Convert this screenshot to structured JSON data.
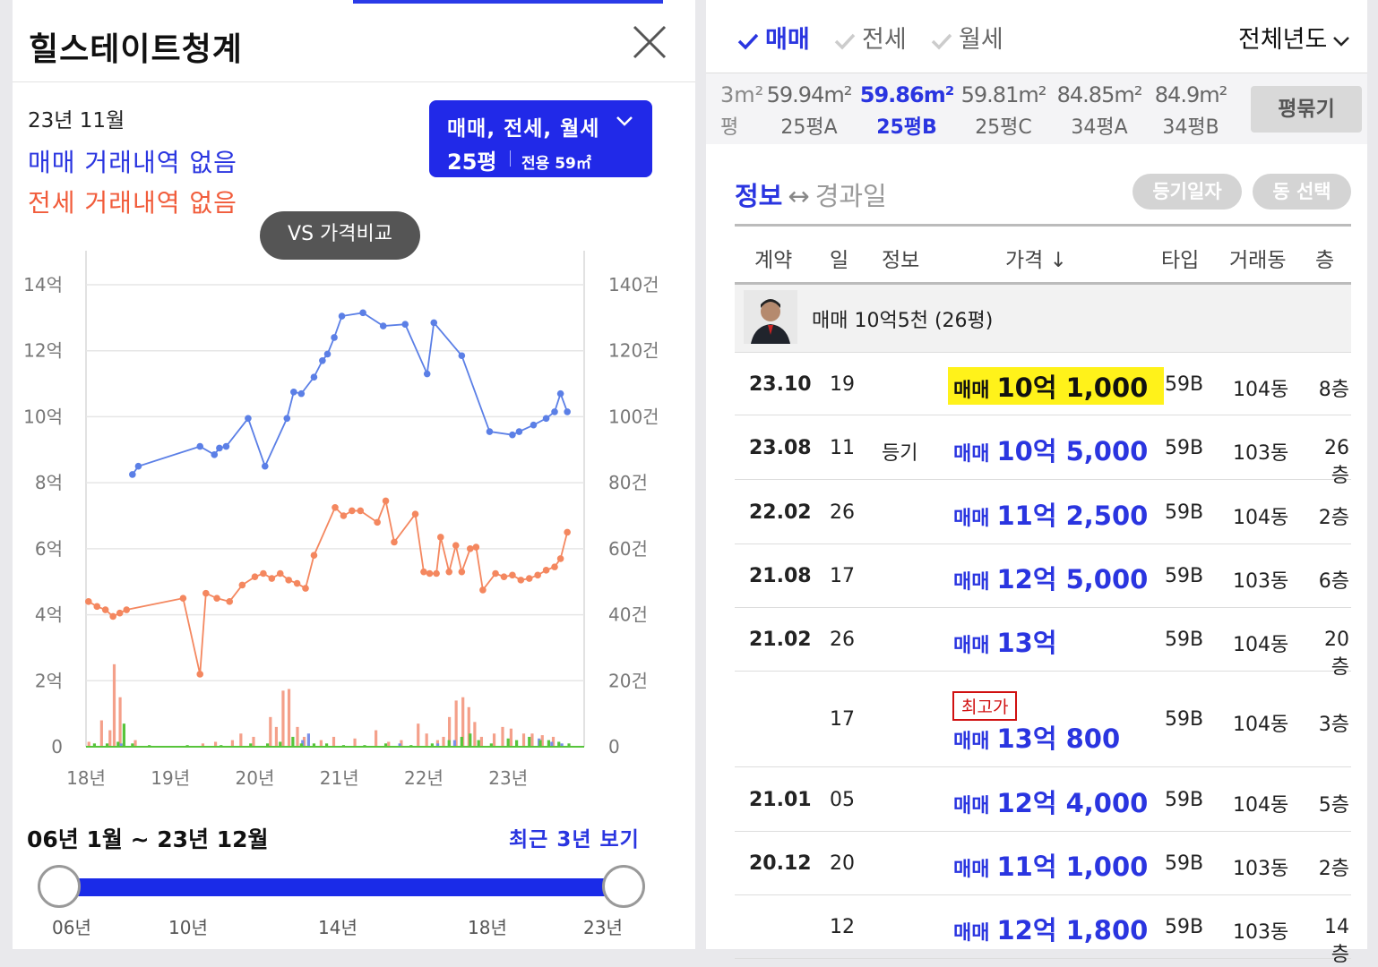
{
  "left_panel": {
    "complex_name": "힐스테이트청계",
    "month": "23년 11월",
    "sale_status": "매매 거래내역 없음",
    "jeonse_status": "전세 거래내역 없음",
    "filter": {
      "types": "매매, 전세, 월세",
      "size": "25평",
      "area": "전용 59㎡"
    },
    "vs_button": "VS 가격비교",
    "range_label": "06년 1월 ~ 23년 12월",
    "recent_button": "최근 3년 보기",
    "slider_ticks": [
      "06년",
      "10년",
      "14년",
      "18년",
      "23년"
    ]
  },
  "chart_data": {
    "type": "line",
    "y_left_ticks": [
      "14억",
      "12억",
      "10억",
      "8억",
      "6억",
      "4억",
      "2억",
      "0"
    ],
    "y_right_ticks": [
      "140건",
      "120건",
      "100건",
      "80건",
      "60건",
      "40건",
      "20건",
      "0"
    ],
    "x_ticks": [
      "18년",
      "19년",
      "20년",
      "21년",
      "22년",
      "23년"
    ],
    "ylim": [
      0,
      14
    ],
    "y2lim": [
      0,
      140
    ],
    "xlim": [
      2018.0,
      2023.9
    ],
    "grid": true,
    "series": [
      {
        "color": "#5b7fe6",
        "points": [
          [
            2018.55,
            8.25
          ],
          [
            2018.62,
            8.5
          ],
          [
            2019.35,
            9.1
          ],
          [
            2019.52,
            8.85
          ],
          [
            2019.58,
            9.05
          ],
          [
            2019.66,
            9.1
          ],
          [
            2019.92,
            9.95
          ],
          [
            2020.12,
            8.5
          ],
          [
            2020.38,
            9.95
          ],
          [
            2020.46,
            10.75
          ],
          [
            2020.55,
            10.7
          ],
          [
            2020.7,
            11.2
          ],
          [
            2020.8,
            11.7
          ],
          [
            2020.86,
            11.9
          ],
          [
            2020.94,
            12.4
          ],
          [
            2021.03,
            13.05
          ],
          [
            2021.28,
            13.15
          ],
          [
            2021.52,
            12.75
          ],
          [
            2021.78,
            12.8
          ],
          [
            2022.04,
            11.3
          ],
          [
            2022.12,
            12.85
          ],
          [
            2022.45,
            11.85
          ],
          [
            2022.78,
            9.55
          ],
          [
            2023.05,
            9.45
          ],
          [
            2023.13,
            9.55
          ],
          [
            2023.3,
            9.75
          ],
          [
            2023.45,
            9.95
          ],
          [
            2023.55,
            10.15
          ],
          [
            2023.62,
            10.7
          ],
          [
            2023.7,
            10.15
          ]
        ]
      },
      {
        "color": "#f4875f",
        "points": [
          [
            2018.03,
            4.4
          ],
          [
            2018.13,
            4.25
          ],
          [
            2018.23,
            4.15
          ],
          [
            2018.32,
            3.95
          ],
          [
            2018.4,
            4.05
          ],
          [
            2018.48,
            4.15
          ],
          [
            2019.15,
            4.5
          ],
          [
            2019.35,
            2.2
          ],
          [
            2019.42,
            4.65
          ],
          [
            2019.55,
            4.5
          ],
          [
            2019.7,
            4.4
          ],
          [
            2019.85,
            4.9
          ],
          [
            2020.0,
            5.15
          ],
          [
            2020.1,
            5.25
          ],
          [
            2020.2,
            5.1
          ],
          [
            2020.3,
            5.25
          ],
          [
            2020.4,
            5.05
          ],
          [
            2020.5,
            4.95
          ],
          [
            2020.6,
            4.8
          ],
          [
            2020.7,
            5.8
          ],
          [
            2020.95,
            7.25
          ],
          [
            2021.05,
            7.0
          ],
          [
            2021.15,
            7.15
          ],
          [
            2021.25,
            7.15
          ],
          [
            2021.45,
            6.8
          ],
          [
            2021.55,
            7.45
          ],
          [
            2021.65,
            6.2
          ],
          [
            2021.9,
            7.05
          ],
          [
            2022.0,
            5.3
          ],
          [
            2022.07,
            5.25
          ],
          [
            2022.15,
            5.25
          ],
          [
            2022.2,
            6.35
          ],
          [
            2022.3,
            5.3
          ],
          [
            2022.38,
            6.1
          ],
          [
            2022.45,
            5.3
          ],
          [
            2022.55,
            6.0
          ],
          [
            2022.62,
            6.05
          ],
          [
            2022.7,
            4.75
          ],
          [
            2022.85,
            5.25
          ],
          [
            2022.95,
            5.15
          ],
          [
            2023.05,
            5.2
          ],
          [
            2023.15,
            5.05
          ],
          [
            2023.25,
            5.1
          ],
          [
            2023.35,
            5.2
          ],
          [
            2023.45,
            5.35
          ],
          [
            2023.55,
            5.45
          ],
          [
            2023.62,
            5.7
          ],
          [
            2023.7,
            6.5
          ]
        ]
      }
    ],
    "volume_bars": {
      "red": [
        [
          2018.05,
          1.5
        ],
        [
          2018.2,
          8
        ],
        [
          2018.3,
          5
        ],
        [
          2018.35,
          25
        ],
        [
          2018.42,
          15
        ],
        [
          2018.6,
          2
        ],
        [
          2019.4,
          1
        ],
        [
          2019.55,
          1.5
        ],
        [
          2019.75,
          2
        ],
        [
          2019.85,
          4
        ],
        [
          2020.0,
          3
        ],
        [
          2020.2,
          9
        ],
        [
          2020.27,
          6
        ],
        [
          2020.35,
          17
        ],
        [
          2020.42,
          17.5
        ],
        [
          2020.52,
          6
        ],
        [
          2020.6,
          3
        ],
        [
          2020.8,
          2
        ],
        [
          2020.95,
          3
        ],
        [
          2021.2,
          2.5
        ],
        [
          2021.45,
          5
        ],
        [
          2021.6,
          1.5
        ],
        [
          2021.75,
          2
        ],
        [
          2021.95,
          7
        ],
        [
          2022.05,
          4
        ],
        [
          2022.18,
          2
        ],
        [
          2022.25,
          3
        ],
        [
          2022.32,
          9
        ],
        [
          2022.4,
          14
        ],
        [
          2022.48,
          15
        ],
        [
          2022.55,
          12
        ],
        [
          2022.62,
          7.5
        ],
        [
          2022.7,
          3
        ],
        [
          2022.85,
          4
        ],
        [
          2022.95,
          6
        ],
        [
          2023.05,
          5.5
        ],
        [
          2023.2,
          4
        ],
        [
          2023.3,
          4
        ],
        [
          2023.42,
          3.5
        ],
        [
          2023.55,
          3
        ]
      ],
      "blue": [
        [
          2018.4,
          1
        ],
        [
          2020.55,
          2
        ],
        [
          2020.62,
          4
        ],
        [
          2021.7,
          1
        ],
        [
          2022.15,
          1
        ],
        [
          2022.35,
          2
        ],
        [
          2023.35,
          2.5
        ],
        [
          2023.5,
          1.5
        ],
        [
          2023.62,
          1
        ]
      ],
      "green": [
        [
          2018.1,
          1
        ],
        [
          2018.25,
          1
        ],
        [
          2018.38,
          1.5
        ],
        [
          2018.45,
          7
        ],
        [
          2018.55,
          1
        ],
        [
          2018.75,
          0.5
        ],
        [
          2019.2,
          0.5
        ],
        [
          2019.6,
          0.5
        ],
        [
          2019.95,
          1
        ],
        [
          2020.15,
          1
        ],
        [
          2020.3,
          1.5
        ],
        [
          2020.45,
          3
        ],
        [
          2020.55,
          1
        ],
        [
          2020.7,
          1
        ],
        [
          2020.85,
          1
        ],
        [
          2021.05,
          0.5
        ],
        [
          2021.3,
          0.5
        ],
        [
          2021.55,
          1
        ],
        [
          2021.85,
          0.5
        ],
        [
          2022.1,
          1
        ],
        [
          2022.3,
          2
        ],
        [
          2022.45,
          3
        ],
        [
          2022.55,
          4
        ],
        [
          2022.65,
          2
        ],
        [
          2022.8,
          1
        ],
        [
          2023.0,
          2.5
        ],
        [
          2023.1,
          2
        ],
        [
          2023.25,
          3
        ],
        [
          2023.38,
          2
        ],
        [
          2023.48,
          2
        ],
        [
          2023.6,
          1.5
        ],
        [
          2023.72,
          1
        ]
      ]
    }
  },
  "right_panel": {
    "tabs": [
      "매매",
      "전세",
      "월세"
    ],
    "year_select": "전체년도",
    "area_partial": {
      "m2": "3m²",
      "py": "평"
    },
    "areas": [
      {
        "m2": "59.94m²",
        "py": "25평A"
      },
      {
        "m2": "59.86m²",
        "py": "25평B"
      },
      {
        "m2": "59.81m²",
        "py": "25평C"
      },
      {
        "m2": "84.85m²",
        "py": "34평A"
      },
      {
        "m2": "84.9m²",
        "py": "34평B"
      }
    ],
    "pyeong_button": "평묶기",
    "info_toggle": {
      "a": "정보",
      "arrow": "↔",
      "b": "경과일"
    },
    "pill_date": "등기일자",
    "pill_dong": "동 선택",
    "headers": [
      "계약",
      "일",
      "정보",
      "가격 ↓",
      "타입",
      "거래동",
      "층"
    ],
    "agent_text": "매매 10억5천 (26평)",
    "badge": "최고가",
    "rows": [
      {
        "date": "23.10",
        "day": "19",
        "info": "",
        "kind": "매매",
        "amt": "10억 1,000",
        "type": "59B",
        "dong": "104동",
        "floor": "8층"
      },
      {
        "date": "23.08",
        "day": "11",
        "info": "등기",
        "kind": "매매",
        "amt": "10억 5,000",
        "type": "59B",
        "dong": "103동",
        "floor": "26층"
      },
      {
        "date": "22.02",
        "day": "26",
        "info": "",
        "kind": "매매",
        "amt": "11억 2,500",
        "type": "59B",
        "dong": "104동",
        "floor": "2층"
      },
      {
        "date": "21.08",
        "day": "17",
        "info": "",
        "kind": "매매",
        "amt": "12억 5,000",
        "type": "59B",
        "dong": "103동",
        "floor": "6층"
      },
      {
        "date": "21.02",
        "day": "26",
        "info": "",
        "kind": "매매",
        "amt": "13억",
        "type": "59B",
        "dong": "104동",
        "floor": "20층"
      },
      {
        "date": "",
        "day": "17",
        "info": "",
        "kind": "매매",
        "amt": "13억 800",
        "type": "59B",
        "dong": "104동",
        "floor": "3층"
      },
      {
        "date": "21.01",
        "day": "05",
        "info": "",
        "kind": "매매",
        "amt": "12억 4,000",
        "type": "59B",
        "dong": "104동",
        "floor": "5층"
      },
      {
        "date": "20.12",
        "day": "20",
        "info": "",
        "kind": "매매",
        "amt": "11억 1,000",
        "type": "59B",
        "dong": "103동",
        "floor": "2층"
      },
      {
        "date": "",
        "day": "12",
        "info": "",
        "kind": "매매",
        "amt": "12억 1,800",
        "type": "59B",
        "dong": "103동",
        "floor": "14층"
      }
    ]
  },
  "colors": {
    "accent": "#2a35e0",
    "jeonse": "#f15c3b",
    "highlight": "#fff21a",
    "badge": "#d01010",
    "sale_line": "#5b7fe6",
    "jeonse_line": "#f4875f",
    "green_bar": "#57c43b"
  }
}
